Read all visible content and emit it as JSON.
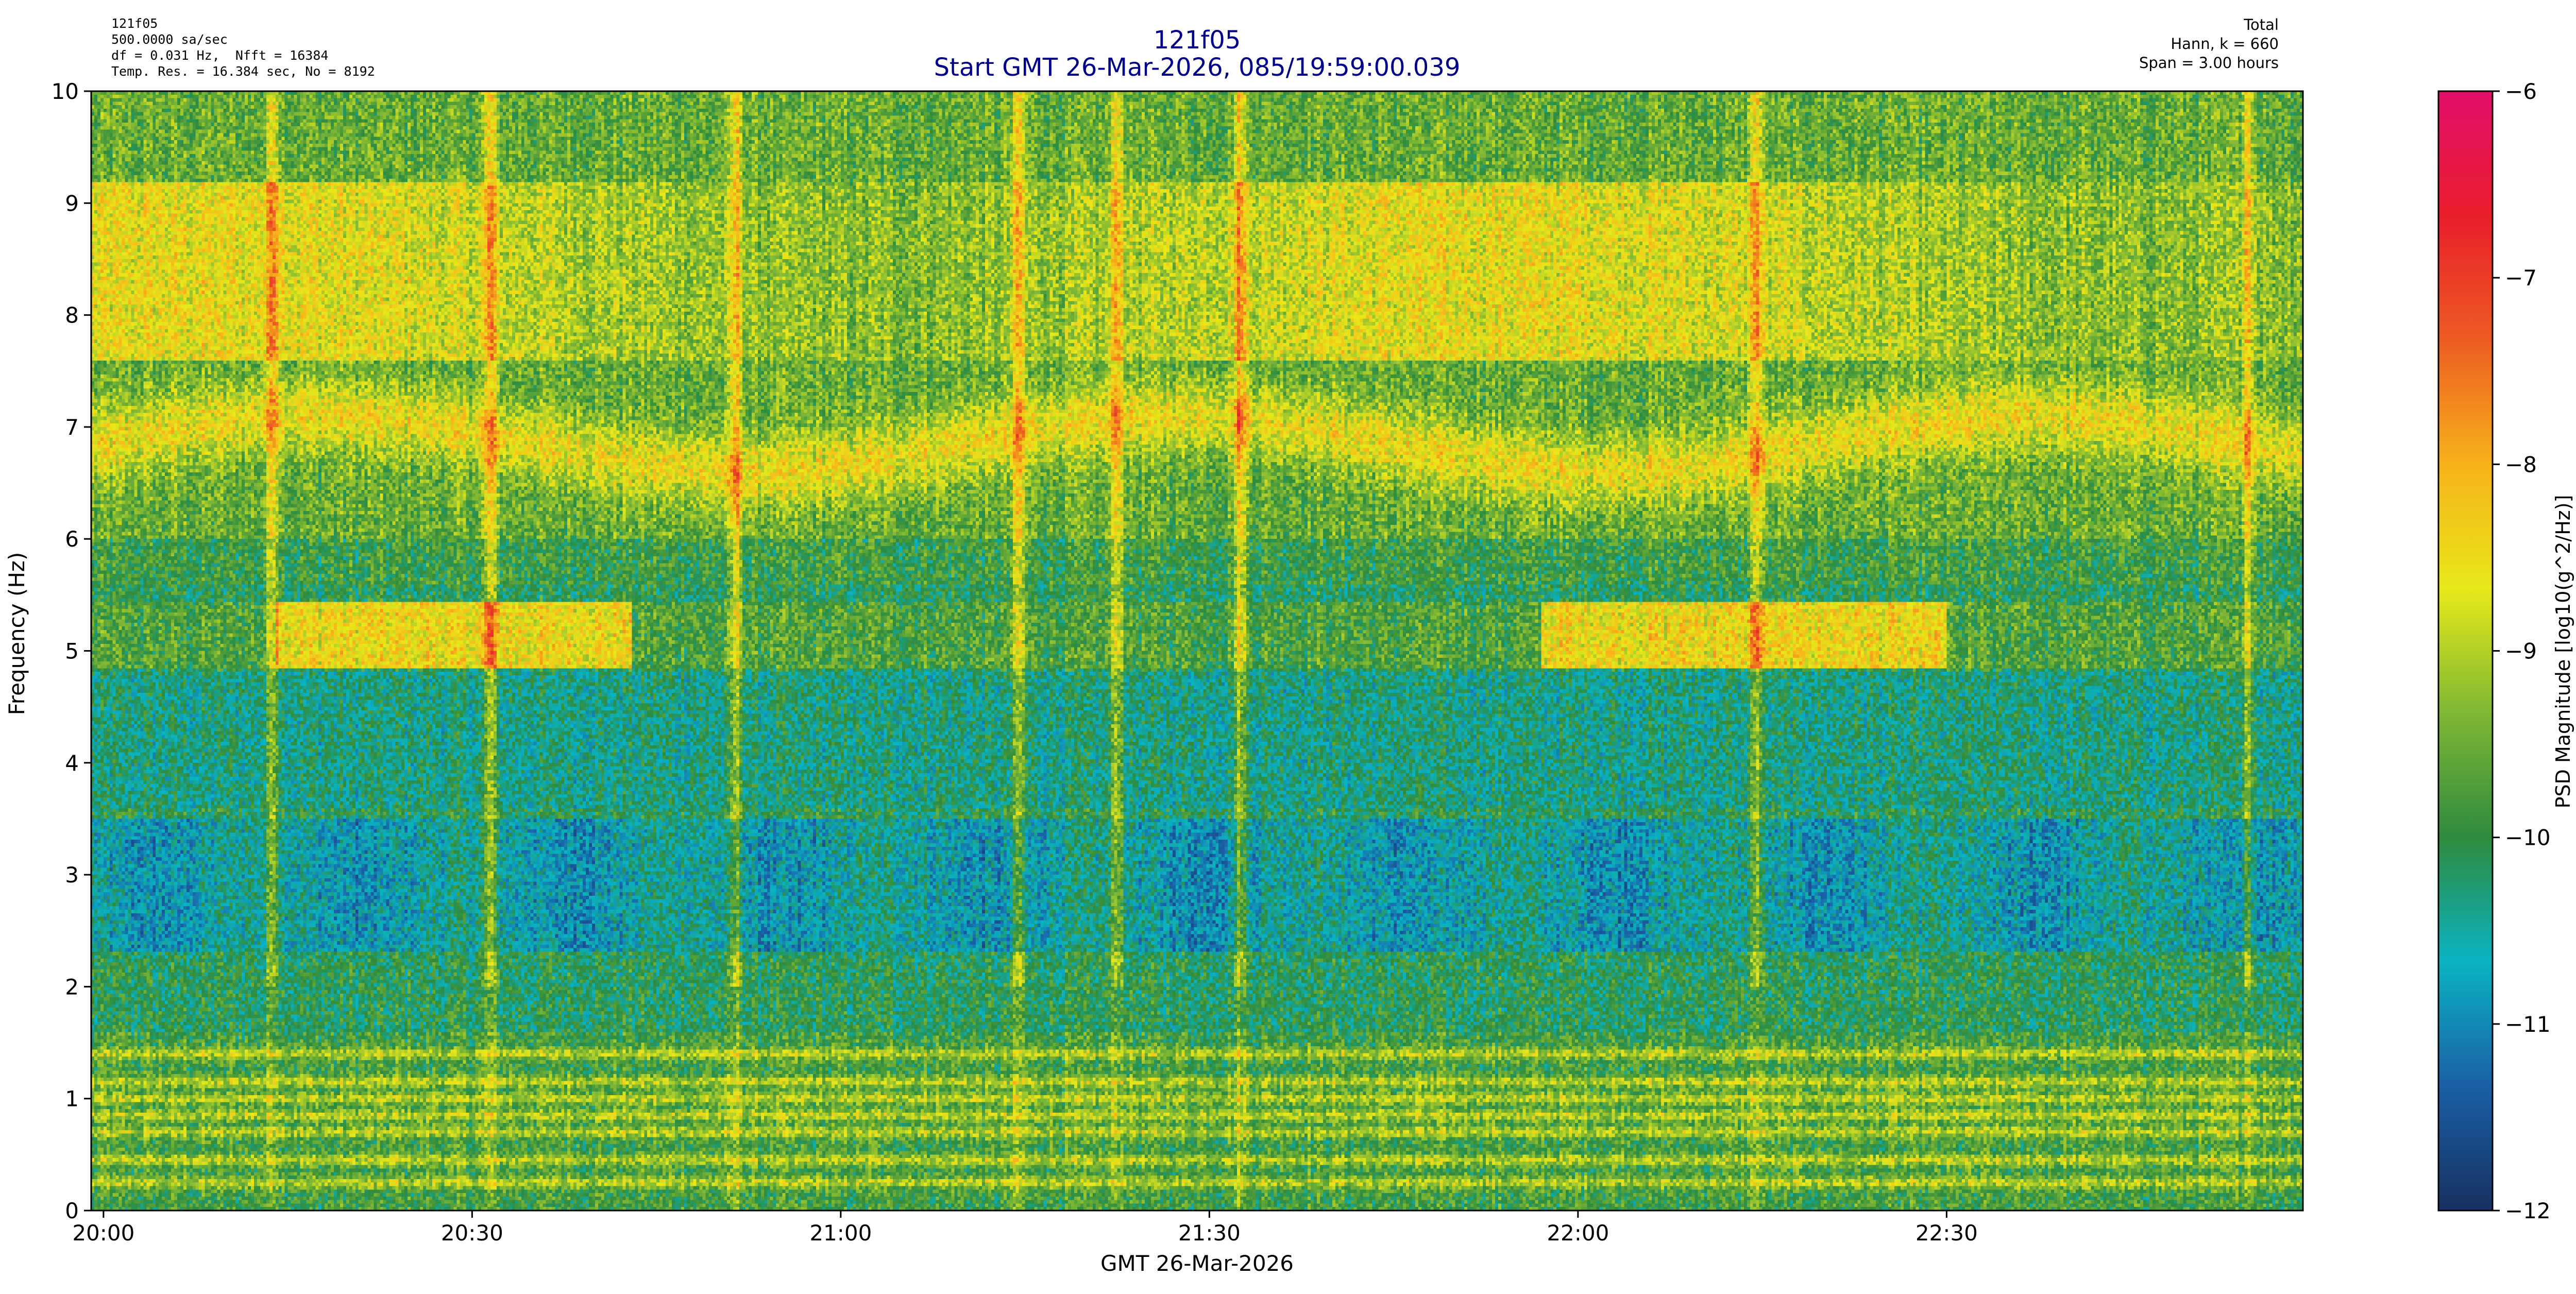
{
  "header": {
    "left_lines": [
      "121f05",
      "500.0000 sa/sec",
      "df = 0.031 Hz,  Nfft = 16384",
      "Temp. Res. = 16.384 sec, No = 8192"
    ],
    "right_lines": [
      "Total",
      "Hann, k = 660",
      "Span = 3.00 hours"
    ],
    "title": "121f05",
    "subtitle": "Start GMT 26-Mar-2026, 085/19:59:00.039"
  },
  "chart_data": {
    "type": "heatmap",
    "xlabel": "GMT 26-Mar-2026",
    "ylabel": "Frequency (Hz)",
    "colorbar_label": "PSD Magnitude [log10(g^2/Hz)]",
    "x_range_minutes_after_2000": [
      -1,
      179
    ],
    "x_ticks": [
      {
        "label": "20:00",
        "minute": 0
      },
      {
        "label": "20:30",
        "minute": 30
      },
      {
        "label": "21:00",
        "minute": 60
      },
      {
        "label": "21:30",
        "minute": 90
      },
      {
        "label": "22:00",
        "minute": 120
      },
      {
        "label": "22:30",
        "minute": 150
      }
    ],
    "y_range": [
      0,
      10
    ],
    "y_ticks": [
      "0",
      "1",
      "2",
      "3",
      "4",
      "5",
      "6",
      "7",
      "8",
      "9",
      "10"
    ],
    "color_range": [
      -12,
      -6
    ],
    "colorbar_ticks": [
      "−12",
      "−11",
      "−10",
      "−9",
      "−8",
      "−7",
      "−6"
    ],
    "colormap": [
      "#17305f",
      "#1a5fa5",
      "#0ab3c2",
      "#2e8b3e",
      "#7fb734",
      "#e8e81a",
      "#f7b21a",
      "#ec5c22",
      "#e81e2b",
      "#e30d6b"
    ],
    "features": {
      "harmonic_bands_hz": [
        0.25,
        0.45,
        0.7,
        0.85,
        1.0,
        1.15,
        1.4
      ],
      "band_5hz": {
        "freq_range": [
          4.85,
          5.45
        ],
        "active_minutes": [
          [
            14,
            43
          ],
          [
            117,
            150
          ]
        ]
      },
      "band_7hz": {
        "freq": 6.85
      },
      "band_high": {
        "freq_range": [
          7.6,
          9.2
        ]
      },
      "spikes_minutes": [
        13.8,
        31.5,
        51.5,
        74.5,
        82.5,
        92.5,
        134.5,
        174.5
      ],
      "dark_region_hz": [
        2.3,
        3.5
      ]
    }
  }
}
